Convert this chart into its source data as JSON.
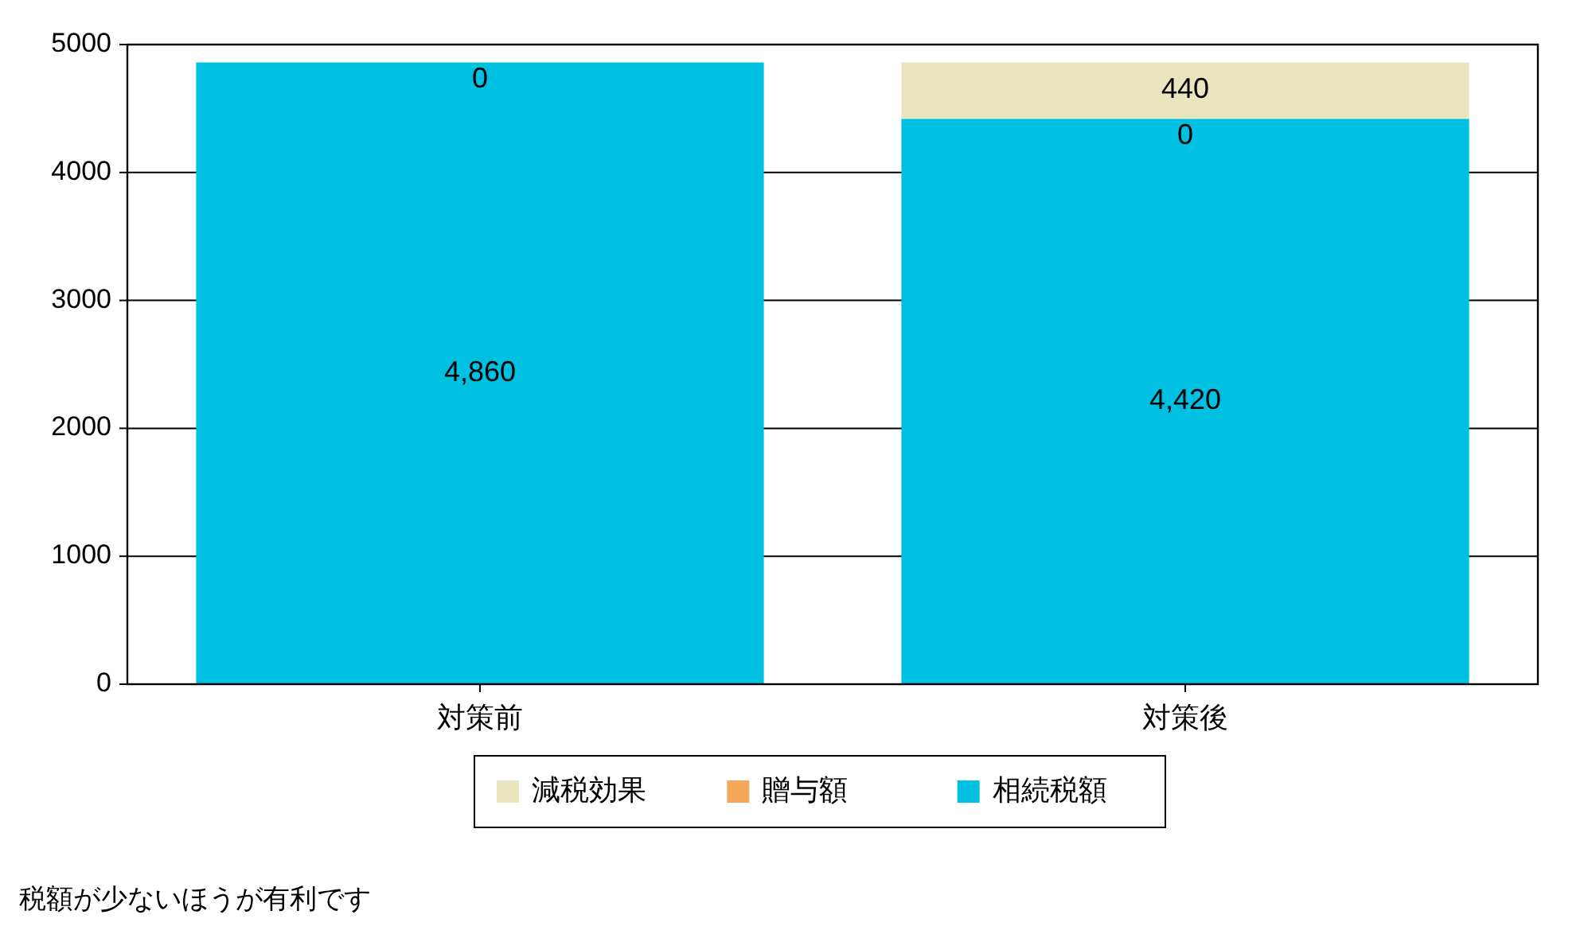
{
  "chart_data": {
    "type": "bar",
    "stacked": true,
    "categories": [
      "対策前",
      "対策後"
    ],
    "series": [
      {
        "name": "相続税額",
        "color": "#00c0e2",
        "values": [
          4860,
          4420
        ],
        "value_labels": [
          "4,860",
          "4,420"
        ]
      },
      {
        "name": "贈与額",
        "color": "#f4a85a",
        "values": [
          0,
          0
        ],
        "value_labels": [
          "0",
          "0"
        ]
      },
      {
        "name": "減税効果",
        "color": "#e9e5bf",
        "values": [
          0,
          440
        ],
        "value_labels": [
          null,
          "440"
        ]
      }
    ],
    "ylim": [
      0,
      5000
    ],
    "yticks": [
      0,
      1000,
      2000,
      3000,
      4000,
      5000
    ],
    "grid": "y",
    "legend": "bottom",
    "annotations": [
      "税額が少ないほうが有利です"
    ]
  }
}
